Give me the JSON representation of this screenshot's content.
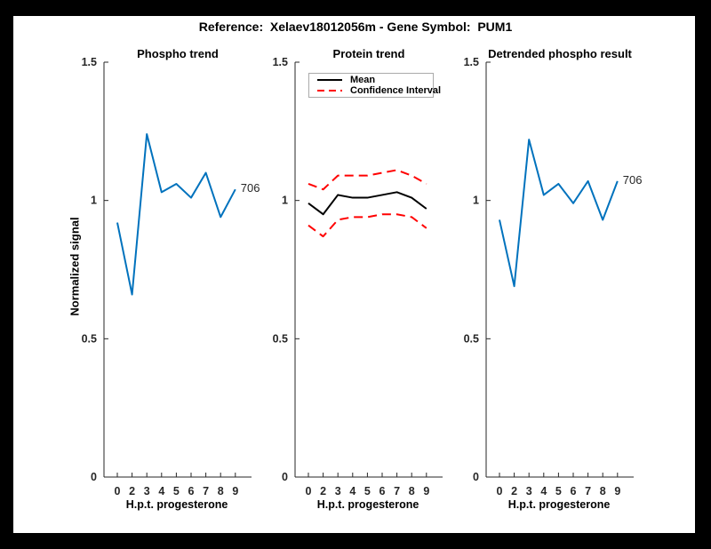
{
  "page": {
    "title": "Reference:  Xelaev18012056m - Gene Symbol:  PUM1"
  },
  "colors": {
    "blue": "#0072BD",
    "red": "#FF0000",
    "black": "#000000",
    "axis": "#262626",
    "figure_bg": "#FFFFFF",
    "page_bg": "#000000",
    "legend_border": "#AAAAAA"
  },
  "chart_data": [
    {
      "type": "line",
      "title": "Phospho trend",
      "xlabel": "H.p.t. progesterone",
      "ylabel": "Normalized signal",
      "categories": [
        "0",
        "2",
        "3",
        "4",
        "5",
        "6",
        "7",
        "8",
        "9"
      ],
      "ylim": [
        0,
        1.5
      ],
      "y_ticks": [
        0,
        0.5,
        1,
        1.5
      ],
      "y_tick_labels": [
        "0",
        "0.5",
        "1",
        "1.5"
      ],
      "grid": false,
      "series": [
        {
          "name": "phospho",
          "color": "#0072BD",
          "style": "solid",
          "values": [
            0.92,
            0.66,
            1.24,
            1.03,
            1.06,
            1.01,
            1.1,
            0.94,
            1.04
          ],
          "end_label": "706"
        }
      ]
    },
    {
      "type": "line",
      "title": "Protein trend",
      "xlabel": "H.p.t. progesterone",
      "ylabel": "",
      "categories": [
        "0",
        "2",
        "3",
        "4",
        "5",
        "6",
        "7",
        "8",
        "9"
      ],
      "ylim": [
        0,
        1.5
      ],
      "y_ticks": [
        0,
        0.5,
        1,
        1.5
      ],
      "y_tick_labels": [
        "0",
        "0.5",
        "1",
        "1.5"
      ],
      "grid": false,
      "legend": {
        "position": "top-left",
        "entries": [
          {
            "label": "Mean",
            "color": "#000000",
            "style": "solid"
          },
          {
            "label": "Confidence Interval",
            "color": "#FF0000",
            "style": "dashed"
          }
        ]
      },
      "series": [
        {
          "name": "Mean",
          "color": "#000000",
          "style": "solid",
          "values": [
            0.99,
            0.95,
            1.02,
            1.01,
            1.01,
            1.02,
            1.03,
            1.01,
            0.97
          ]
        },
        {
          "name": "Confidence Interval upper",
          "color": "#FF0000",
          "style": "dashed",
          "values": [
            1.06,
            1.04,
            1.09,
            1.09,
            1.09,
            1.1,
            1.11,
            1.09,
            1.06
          ]
        },
        {
          "name": "Confidence Interval lower",
          "color": "#FF0000",
          "style": "dashed",
          "values": [
            0.91,
            0.87,
            0.93,
            0.94,
            0.94,
            0.95,
            0.95,
            0.94,
            0.9
          ]
        }
      ]
    },
    {
      "type": "line",
      "title": "Detrended phospho result",
      "xlabel": "H.p.t. progesterone",
      "ylabel": "",
      "categories": [
        "0",
        "2",
        "3",
        "4",
        "5",
        "6",
        "7",
        "8",
        "9"
      ],
      "ylim": [
        0,
        1.5
      ],
      "y_ticks": [
        0,
        0.5,
        1,
        1.5
      ],
      "y_tick_labels": [
        "0",
        "0.5",
        "1",
        "1.5"
      ],
      "grid": false,
      "series": [
        {
          "name": "detrended phospho",
          "color": "#0072BD",
          "style": "solid",
          "values": [
            0.93,
            0.69,
            1.22,
            1.02,
            1.06,
            0.99,
            1.07,
            0.93,
            1.07
          ],
          "end_label": "706"
        }
      ]
    }
  ]
}
